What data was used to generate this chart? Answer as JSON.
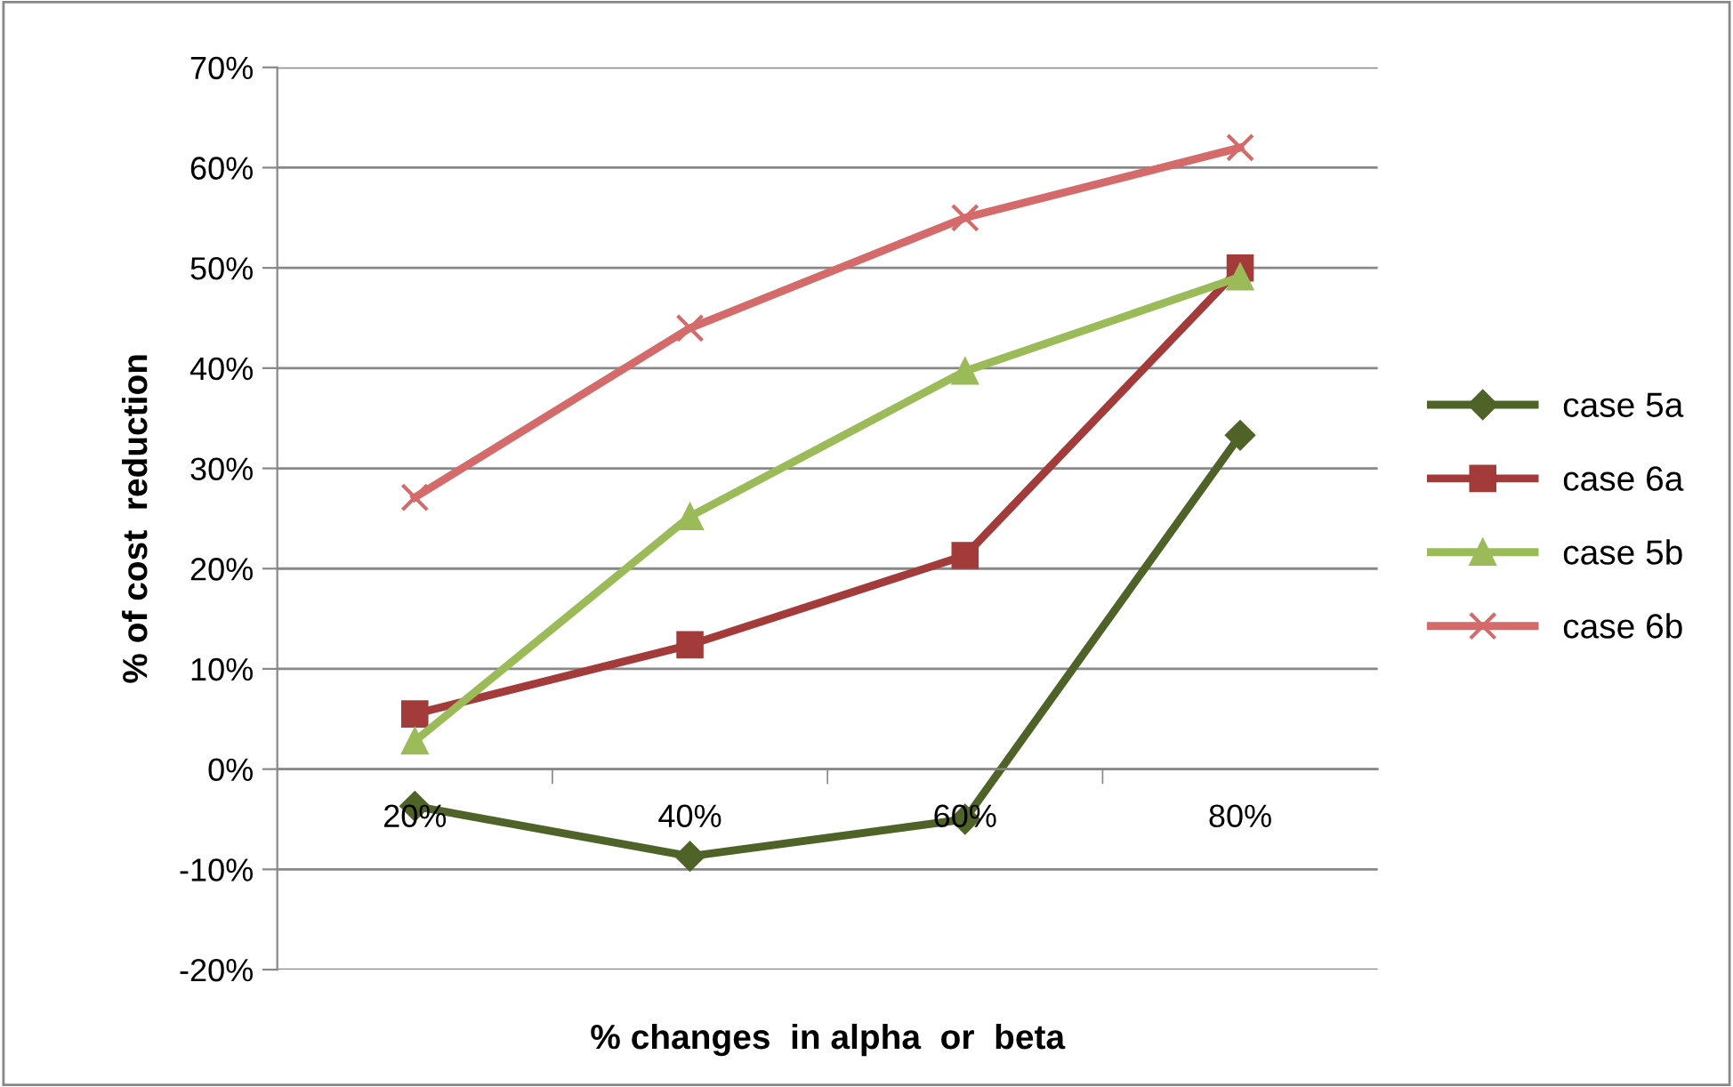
{
  "chart_data": {
    "type": "line",
    "xlabel": "% changes  in alpha  or  beta",
    "ylabel": "% of cost  reduction",
    "categories": [
      "20%",
      "40%",
      "60%",
      "80%"
    ],
    "series": [
      {
        "name": "case 5a",
        "color": "#4f6228",
        "marker": "diamond",
        "values": [
          -3.7,
          -8.7,
          -5,
          33.3
        ]
      },
      {
        "name": "case 6a",
        "color": "#a33b3b",
        "marker": "square",
        "values": [
          5.5,
          12.4,
          21.3,
          50
        ]
      },
      {
        "name": "case 5b",
        "color": "#9bbb59",
        "marker": "triangle",
        "values": [
          2.8,
          25.2,
          39.7,
          49.1
        ]
      },
      {
        "name": "case 6b",
        "color": "#d46a6a",
        "marker": "cross",
        "values": [
          27.1,
          44,
          55,
          62
        ]
      }
    ],
    "ylim": [
      -20,
      70
    ],
    "yticks": [
      {
        "value": -20,
        "label": "-20%"
      },
      {
        "value": -10,
        "label": "-10%"
      },
      {
        "value": 0,
        "label": "0%"
      },
      {
        "value": 10,
        "label": "10%"
      },
      {
        "value": 20,
        "label": "20%"
      },
      {
        "value": 30,
        "label": "30%"
      },
      {
        "value": 40,
        "label": "40%"
      },
      {
        "value": 50,
        "label": "50%"
      },
      {
        "value": 60,
        "label": "60%"
      },
      {
        "value": 70,
        "label": "70%"
      }
    ],
    "grid": "y",
    "legend": "right",
    "line_style": "solid"
  }
}
